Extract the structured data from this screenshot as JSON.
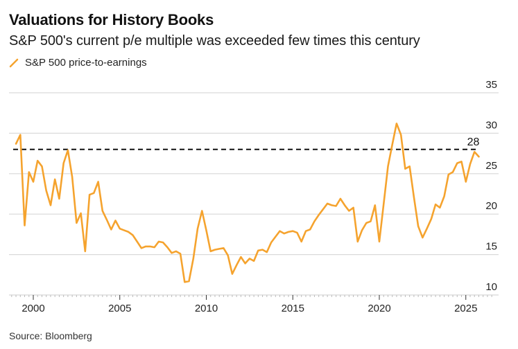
{
  "header": {
    "title": "Valuations for History Books",
    "subtitle": "S&P 500's current p/e multiple was exceeded few times this century"
  },
  "legend": {
    "items": [
      {
        "label": "S&P 500 price-to-earnings",
        "color": "#f5a32e",
        "icon": "line-swatch-icon"
      }
    ]
  },
  "footer": {
    "source": "Source: Bloomberg"
  },
  "chart_data": {
    "type": "line",
    "title": "Valuations for History Books",
    "subtitle": "S&P 500's current p/e multiple was exceeded few times this century",
    "xlabel": "",
    "ylabel": "",
    "xlim": [
      1998.6,
      2026.8
    ],
    "ylim": [
      10,
      35
    ],
    "yticks": [
      10,
      15,
      20,
      25,
      30,
      35
    ],
    "xticks": [
      2000,
      2005,
      2010,
      2015,
      2020,
      2025
    ],
    "xtick_labels": [
      "2000",
      "2005",
      "2010",
      "2015",
      "2020",
      "2025"
    ],
    "ytick_labels": [
      "10",
      "15",
      "20",
      "25",
      "30",
      "35"
    ],
    "y_axis_side": "right",
    "grid": true,
    "legend_position": "top-left",
    "reference_line": {
      "value": 28,
      "label": "28",
      "style": "dashed",
      "color": "#111111"
    },
    "series": [
      {
        "name": "S&P 500 price-to-earnings",
        "color": "#f5a32e",
        "x_start": 1999.0,
        "x_step": 0.25,
        "values": [
          28.7,
          29.8,
          18.6,
          25.2,
          24.0,
          26.6,
          25.9,
          22.9,
          21.1,
          24.3,
          21.9,
          26.3,
          27.9,
          24.6,
          18.9,
          20.1,
          15.4,
          22.4,
          22.6,
          24.0,
          20.4,
          19.3,
          18.1,
          19.2,
          18.2,
          18.0,
          17.8,
          17.4,
          16.6,
          15.8,
          16.0,
          16.0,
          15.9,
          16.6,
          16.5,
          15.9,
          15.2,
          15.4,
          15.1,
          11.6,
          11.7,
          14.5,
          18.2,
          20.4,
          18.0,
          15.4,
          15.6,
          15.7,
          15.8,
          14.9,
          12.6,
          13.7,
          14.7,
          13.9,
          14.5,
          14.2,
          15.5,
          15.6,
          15.3,
          16.5,
          17.2,
          17.9,
          17.6,
          17.8,
          17.9,
          17.7,
          16.6,
          17.9,
          18.1,
          19.1,
          19.9,
          20.6,
          21.3,
          21.1,
          21.0,
          21.9,
          21.1,
          20.4,
          20.8,
          16.6,
          18.0,
          18.9,
          19.1,
          21.1,
          16.6,
          21.2,
          25.9,
          28.6,
          31.2,
          29.8,
          25.6,
          25.9,
          22.1,
          18.5,
          17.1,
          18.2,
          19.4,
          21.2,
          20.8,
          22.2,
          24.9,
          25.2,
          26.3,
          26.5,
          24.0,
          26.2,
          27.7,
          27.1
        ]
      }
    ]
  }
}
